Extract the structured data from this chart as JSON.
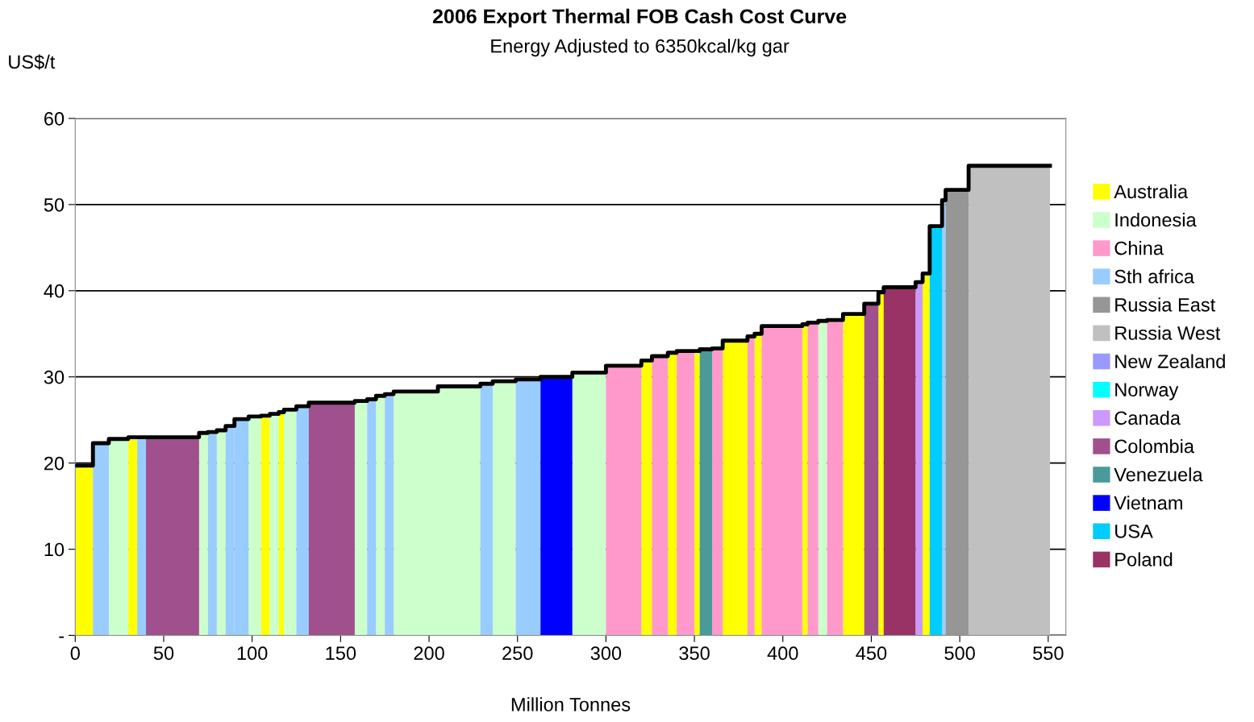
{
  "chart_data": {
    "type": "area",
    "title": "2006 Export Thermal FOB Cash Cost Curve",
    "subtitle": "Energy Adjusted to 6350kcal/kg gar",
    "ylabel": "US$/t",
    "xlabel": "Million Tonnes",
    "xlim": [
      0,
      560
    ],
    "xticks": [
      0,
      50,
      100,
      150,
      200,
      250,
      300,
      350,
      400,
      450,
      500,
      550
    ],
    "ylim": [
      0,
      60
    ],
    "yticks": [
      {
        "value": 0,
        "label": "-"
      },
      10,
      20,
      30,
      40,
      50,
      60
    ],
    "grid": "y",
    "legend": "right",
    "series": [
      {
        "name": "Australia",
        "color": "#ffff00",
        "x": [
          0,
          10,
          null,
          30,
          35,
          null,
          105,
          110,
          null,
          115,
          118,
          null,
          320,
          326,
          null,
          335,
          340,
          null,
          350,
          353,
          null,
          366,
          380,
          null,
          384,
          388,
          null,
          411,
          414,
          null,
          434,
          446,
          null,
          454,
          457,
          null,
          479,
          483
        ],
        "values": [
          19.7,
          19.7,
          null,
          23.0,
          23.0,
          null,
          25.5,
          25.5,
          null,
          25.9,
          25.9,
          null,
          31.9,
          31.9,
          null,
          32.8,
          32.8,
          null,
          33.0,
          33.0,
          null,
          34.2,
          34.2,
          null,
          35.0,
          35.0,
          null,
          36.1,
          36.1,
          null,
          37.3,
          37.3,
          null,
          39.8,
          39.8,
          null,
          42.0,
          42.0
        ]
      },
      {
        "name": "Indonesia",
        "color": "#ccffcc",
        "x": [
          19,
          30,
          null,
          70,
          75,
          null,
          80,
          85,
          null,
          98,
          105,
          null,
          110,
          115,
          null,
          118,
          125,
          null,
          158,
          165,
          null,
          170,
          175,
          null,
          180,
          205,
          null,
          205,
          229,
          null,
          236,
          249,
          null,
          281,
          300,
          null,
          420,
          425
        ],
        "values": [
          22.8,
          22.8,
          null,
          23.5,
          23.5,
          null,
          23.8,
          23.8,
          null,
          25.4,
          25.4,
          null,
          25.7,
          25.7,
          null,
          26.2,
          26.2,
          null,
          27.2,
          27.2,
          null,
          27.8,
          27.8,
          null,
          28.3,
          28.3,
          null,
          28.9,
          28.9,
          null,
          29.5,
          29.5,
          null,
          30.5,
          30.5,
          null,
          36.5,
          36.5
        ]
      },
      {
        "name": "China",
        "color": "#ff99cc",
        "x": [
          300,
          320,
          null,
          326,
          335,
          null,
          340,
          350,
          null,
          360,
          366,
          null,
          380,
          384,
          null,
          388,
          411,
          null,
          414,
          420,
          null,
          425,
          434
        ],
        "values": [
          31.3,
          31.3,
          null,
          32.4,
          32.4,
          null,
          33.0,
          33.0,
          null,
          33.3,
          33.3,
          null,
          34.7,
          34.7,
          null,
          35.9,
          35.9,
          null,
          36.3,
          36.3,
          null,
          36.6,
          36.6
        ]
      },
      {
        "name": "Sth africa",
        "color": "#99ccff",
        "x": [
          10,
          19,
          null,
          35,
          40,
          null,
          75,
          80,
          null,
          85,
          90,
          null,
          90,
          98,
          null,
          125,
          132,
          null,
          165,
          170,
          null,
          175,
          180,
          null,
          229,
          236,
          null,
          249,
          263,
          null,
          490,
          492
        ],
        "values": [
          22.3,
          22.3,
          null,
          23.0,
          23.0,
          null,
          23.6,
          23.6,
          null,
          24.3,
          24.3,
          null,
          25.1,
          25.1,
          null,
          26.6,
          26.6,
          null,
          27.4,
          27.4,
          null,
          28.0,
          28.0,
          null,
          29.2,
          29.2,
          null,
          29.7,
          29.7,
          null,
          50.5,
          50.5
        ]
      },
      {
        "name": "Russia East",
        "color": "#969696",
        "x": [
          492,
          505
        ],
        "values": [
          51.7,
          51.7
        ]
      },
      {
        "name": "Russia West",
        "color": "#c0c0c0",
        "x": [
          505,
          551
        ],
        "values": [
          54.5,
          54.5
        ]
      },
      {
        "name": "New Zealand",
        "color": "#9999ff"
      },
      {
        "name": "Norway",
        "color": "#00ffff"
      },
      {
        "name": "Canada",
        "color": "#cc99ff",
        "x": [
          475,
          479
        ],
        "values": [
          41.0,
          41.0
        ]
      },
      {
        "name": "Colombia",
        "color": "#a0508c",
        "x": [
          40,
          70,
          null,
          132,
          158,
          null,
          446,
          454
        ],
        "values": [
          23.0,
          23.0,
          null,
          27.0,
          27.0,
          null,
          38.5,
          38.5
        ]
      },
      {
        "name": "Venezuela",
        "color": "#4a9a9a",
        "x": [
          353,
          360
        ],
        "values": [
          33.2,
          33.2
        ]
      },
      {
        "name": "Vietnam",
        "color": "#0000ff",
        "x": [
          263,
          281
        ],
        "values": [
          30.0,
          30.0
        ]
      },
      {
        "name": "USA",
        "color": "#00ccff",
        "x": [
          483,
          490
        ],
        "values": [
          47.5,
          47.5
        ]
      },
      {
        "name": "Poland",
        "color": "#993366",
        "x": [
          457,
          475
        ],
        "values": [
          40.4,
          40.4
        ]
      },
      {
        "type": "step",
        "color": "#000000",
        "x": [
          0,
          10,
          19,
          30,
          35,
          40,
          70,
          75,
          80,
          85,
          90,
          98,
          105,
          110,
          115,
          118,
          125,
          132,
          158,
          165,
          170,
          175,
          180,
          205,
          229,
          236,
          249,
          263,
          281,
          300,
          320,
          326,
          335,
          340,
          350,
          353,
          360,
          366,
          380,
          384,
          388,
          411,
          414,
          420,
          425,
          434,
          446,
          454,
          457,
          475,
          479,
          483,
          490,
          492,
          505,
          551
        ],
        "values": [
          19.7,
          22.3,
          22.8,
          23.0,
          23.0,
          23.0,
          23.5,
          23.6,
          23.8,
          24.3,
          25.1,
          25.4,
          25.5,
          25.7,
          25.9,
          26.2,
          26.6,
          27.0,
          27.2,
          27.4,
          27.8,
          28.0,
          28.3,
          28.9,
          29.2,
          29.5,
          29.7,
          30.0,
          30.5,
          31.3,
          31.9,
          32.4,
          32.8,
          33.0,
          33.0,
          33.2,
          33.3,
          34.2,
          34.7,
          35.0,
          35.9,
          36.1,
          36.3,
          36.5,
          36.6,
          37.3,
          38.5,
          39.8,
          40.4,
          41.0,
          42.0,
          47.5,
          50.5,
          51.7,
          54.5,
          54.5
        ]
      }
    ]
  }
}
